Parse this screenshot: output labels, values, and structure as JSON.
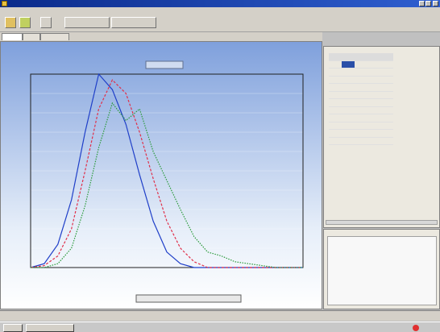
{
  "colors": {
    "title_bar": "#0a2a8a",
    "plot_background_top": "#7fa0dc",
    "plot_background_bottom": "#ffffff",
    "series_blue": "#1f3fc8",
    "series_red": "#e0304a",
    "series_green": "#2a9a3a",
    "table_selection": "#2a4fa8"
  },
  "icons": [
    "app-icon",
    "minimize-icon",
    "maximize-icon",
    "close-icon",
    "toolbar-tool-icon",
    "start-icon",
    "tray-icon"
  ],
  "chart_data": {
    "type": "line",
    "grid": true,
    "legend": "none",
    "x": [
      0,
      1,
      2,
      3,
      4,
      5,
      6,
      7,
      8,
      9,
      10,
      11,
      12,
      13,
      14,
      15,
      16,
      17,
      18,
      19,
      20
    ],
    "xlim": [
      0,
      100
    ],
    "ylim": [
      0,
      1
    ],
    "series": [
      {
        "values": [
          0,
          0.02,
          0.12,
          0.35,
          0.7,
          1.0,
          0.92,
          0.74,
          0.48,
          0.24,
          0.08,
          0.02,
          0,
          0,
          0,
          0,
          0,
          0,
          0,
          0,
          0
        ]
      },
      {
        "values": [
          0,
          0.01,
          0.06,
          0.2,
          0.5,
          0.82,
          0.97,
          0.9,
          0.7,
          0.46,
          0.24,
          0.1,
          0.03,
          0,
          0,
          0,
          0,
          0,
          0,
          0,
          0
        ]
      },
      {
        "values": [
          0,
          0,
          0.02,
          0.1,
          0.32,
          0.62,
          0.85,
          0.76,
          0.82,
          0.6,
          0.45,
          0.3,
          0.16,
          0.08,
          0.06,
          0.03,
          0.02,
          0.01,
          0,
          0,
          0
        ]
      }
    ]
  }
}
